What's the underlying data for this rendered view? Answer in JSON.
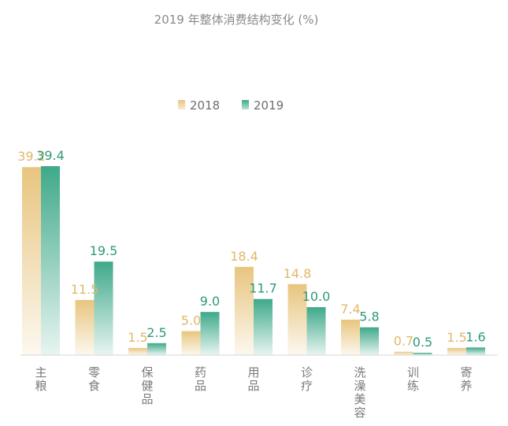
{
  "chart_data": {
    "type": "bar",
    "title": "2019 年整体消费结构变化 (%)",
    "categories": [
      "主粮",
      "零食",
      "保健品",
      "药品",
      "用品",
      "诊疗",
      "洗澡美容",
      "训练",
      "寄养"
    ],
    "series": [
      {
        "name": "2018",
        "values": [
          39.2,
          11.5,
          1.5,
          5.0,
          18.4,
          14.8,
          7.4,
          0.7,
          1.5
        ],
        "labels": [
          "39.2",
          "11.5",
          "1.5",
          "5.0",
          "18.4",
          "14.8",
          "7.4",
          "0.7",
          "1.5"
        ],
        "color": "#e8c57f",
        "label_color": "#e0b86a"
      },
      {
        "name": "2019",
        "values": [
          39.4,
          19.5,
          2.5,
          9.0,
          11.7,
          10.0,
          5.8,
          0.5,
          1.6
        ],
        "labels": [
          "39.4",
          "19.5",
          "2.5",
          "9.0",
          "11.7",
          "10.0",
          "5.8",
          "0.5",
          "1.6"
        ],
        "color": "#3fa98a",
        "label_color": "#2f9a7a"
      }
    ],
    "ylim": [
      0,
      39.4
    ],
    "grid": false,
    "legend_position": "top-center",
    "xlabel": "",
    "ylabel": ""
  }
}
